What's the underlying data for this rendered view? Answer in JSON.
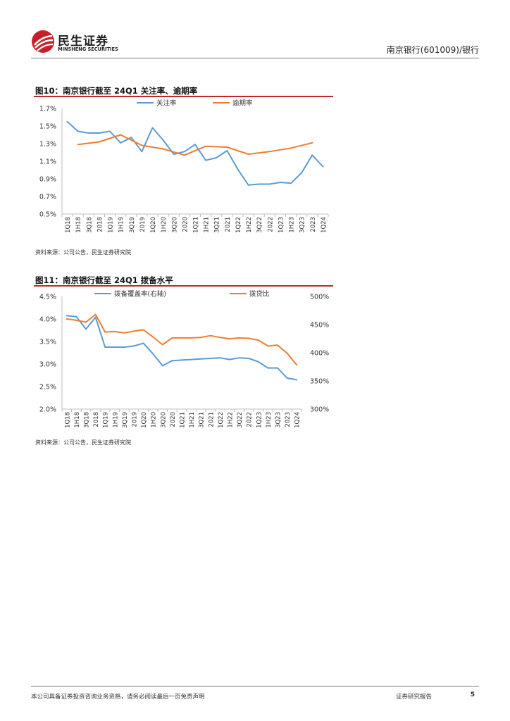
{
  "header": {
    "brand_cn": "民生证券",
    "brand_en": "MINSHENG SECURITIES",
    "report_subject": "南京银行(601009)/银行"
  },
  "figures": [
    {
      "title": "图10：南京银行截至 24Q1 关注率、逾期率",
      "source": "资料来源：公司公告，民生证券研究院"
    },
    {
      "title": "图11：南京银行截至 24Q1 拨备水平",
      "source": "资料来源：公司公告，民生证券研究院"
    }
  ],
  "chart_data": [
    {
      "type": "line",
      "title": "南京银行截至 24Q1 关注率、逾期率",
      "categories": [
        "1Q18",
        "1H18",
        "3Q18",
        "2018",
        "1Q19",
        "1H19",
        "3Q19",
        "2019",
        "1Q20",
        "1H20",
        "3Q20",
        "2020",
        "1Q21",
        "1H21",
        "3Q21",
        "2021",
        "1Q22",
        "1H22",
        "3Q22",
        "2022",
        "1Q23",
        "1H23",
        "3Q23",
        "2023",
        "1Q24"
      ],
      "y_ticks": [
        "0.5%",
        "0.7%",
        "0.9%",
        "1.1%",
        "1.3%",
        "1.5%",
        "1.7%"
      ],
      "ylim": [
        0.5,
        1.7
      ],
      "series": [
        {
          "name": "关注率",
          "color": "#5b9bd5",
          "values": [
            1.55,
            1.44,
            1.42,
            1.42,
            1.44,
            1.31,
            1.37,
            1.21,
            1.48,
            1.34,
            1.18,
            1.21,
            1.29,
            1.11,
            1.14,
            1.22,
            1.01,
            0.83,
            0.84,
            0.84,
            0.86,
            0.85,
            0.97,
            1.17,
            1.04
          ]
        },
        {
          "name": "逾期率",
          "color": "#ed7d31",
          "values": [
            null,
            1.29,
            null,
            1.32,
            null,
            1.4,
            null,
            1.28,
            null,
            1.24,
            null,
            1.17,
            null,
            1.27,
            null,
            1.26,
            null,
            1.18,
            null,
            1.21,
            null,
            1.25,
            null,
            1.31,
            null
          ]
        }
      ]
    },
    {
      "type": "line",
      "title": "南京银行截至 24Q1 拨备水平",
      "categories": [
        "1Q18",
        "1H18",
        "3Q18",
        "2018",
        "1Q19",
        "1H19",
        "3Q19",
        "2019",
        "1Q20",
        "1H20",
        "3Q20",
        "2020",
        "1Q21",
        "1H21",
        "3Q21",
        "2021",
        "1Q22",
        "1H22",
        "3Q22",
        "2022",
        "1Q23",
        "1H23",
        "3Q23",
        "2023",
        "1Q24"
      ],
      "y_ticks_left": [
        "2.0%",
        "2.5%",
        "3.0%",
        "3.5%",
        "4.0%",
        "4.5%"
      ],
      "y_ticks_right": [
        "300%",
        "350%",
        "400%",
        "450%",
        "500%"
      ],
      "ylim_left": [
        2.0,
        4.5
      ],
      "ylim_right": [
        300,
        500
      ],
      "series": [
        {
          "name": "拨备覆盖率(右轴)",
          "axis": "right",
          "color": "#5b9bd5",
          "values": [
            466,
            464,
            442,
            463,
            410,
            410,
            410,
            412,
            417,
            398,
            377,
            386,
            387,
            388,
            389,
            390,
            391,
            388,
            391,
            390,
            384,
            373,
            373,
            355,
            352
          ]
        },
        {
          "name": "拨贷比",
          "axis": "left",
          "color": "#ed7d31",
          "values": [
            4.0,
            3.97,
            3.93,
            4.1,
            3.71,
            3.72,
            3.69,
            3.73,
            3.76,
            3.6,
            3.43,
            3.58,
            3.58,
            3.58,
            3.59,
            3.63,
            3.59,
            3.56,
            3.58,
            3.57,
            3.53,
            3.4,
            3.42,
            3.24,
            2.98
          ]
        }
      ]
    }
  ],
  "footer": {
    "disclaimer": "本公司具备证券投资咨询业务资格，请务必阅读最后一页免责声明",
    "report_type": "证券研究报告",
    "page_number": "5"
  }
}
